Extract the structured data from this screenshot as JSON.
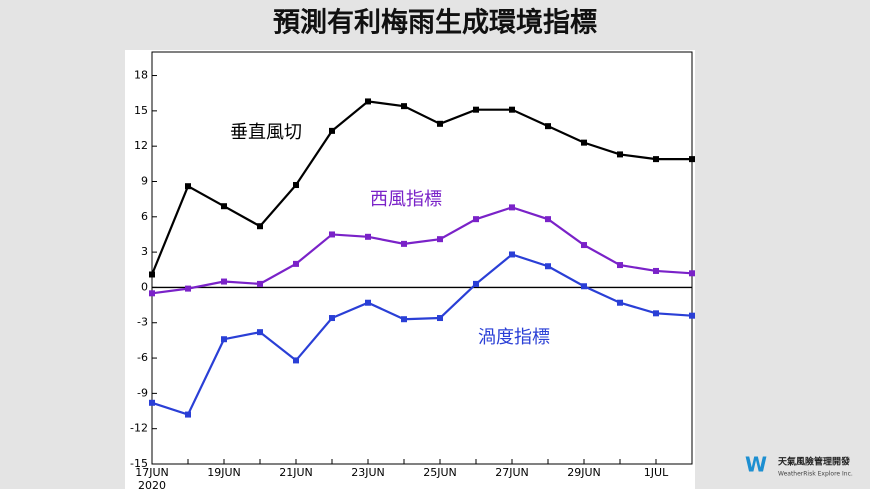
{
  "chart_data": {
    "type": "line",
    "title": "預測有利梅雨生成環境指標",
    "categories": [
      "17JUN",
      null,
      "19JUN",
      null,
      "21JUN",
      null,
      "23JUN",
      null,
      "25JUN",
      null,
      "27JUN",
      null,
      "29JUN",
      null,
      "1JUL",
      null
    ],
    "x_sublabel": "2020",
    "series": [
      {
        "name": "垂直風切",
        "color": "#000000",
        "values": [
          1.1,
          8.6,
          6.9,
          5.2,
          8.7,
          13.3,
          15.8,
          15.4,
          13.9,
          15.1,
          15.1,
          13.7,
          12.3,
          11.3,
          10.9,
          10.9
        ]
      },
      {
        "name": "西風指標",
        "color": "#7a22c8",
        "values": [
          -0.5,
          -0.1,
          0.5,
          0.3,
          2.0,
          4.5,
          4.3,
          3.7,
          4.1,
          5.8,
          6.8,
          5.8,
          3.6,
          1.9,
          1.4,
          1.2
        ]
      },
      {
        "name": "渦度指標",
        "color": "#2a3fd6",
        "values": [
          -9.8,
          -10.8,
          -4.4,
          -3.8,
          -6.2,
          -2.6,
          -1.3,
          -2.7,
          -2.6,
          0.3,
          2.8,
          1.8,
          0.1,
          -1.3,
          -2.2,
          -2.4
        ]
      }
    ],
    "ylim": [
      -15,
      20
    ],
    "yticks": [
      -15,
      -12,
      -9,
      -6,
      -3,
      0,
      3,
      6,
      9,
      12,
      15,
      18
    ]
  },
  "logo": {
    "name": "天氣風險管理開發",
    "subtitle": "WeatherRisk Explore Inc."
  }
}
